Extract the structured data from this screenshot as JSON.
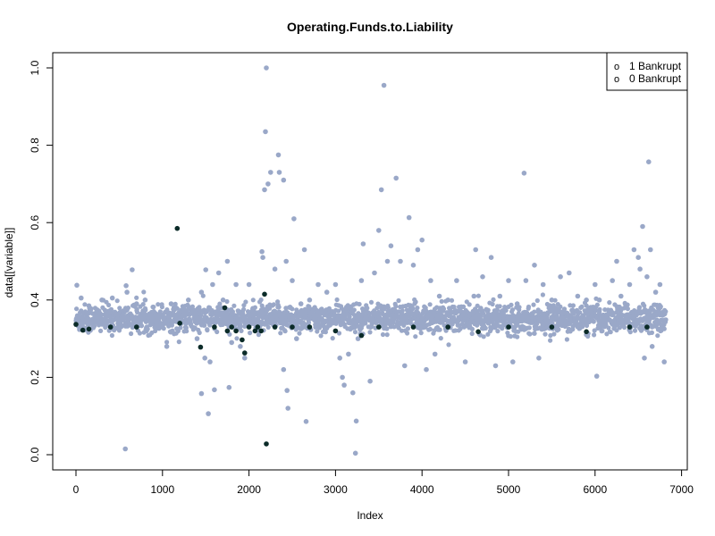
{
  "chart_data": {
    "type": "scatter",
    "title": "Operating.Funds.to.Liability",
    "xlabel": "Index",
    "ylabel": "data[[variable]]",
    "xlim": [
      0,
      7000
    ],
    "ylim": [
      0,
      1.0
    ],
    "x_ticks": [
      0,
      1000,
      2000,
      3000,
      4000,
      5000,
      6000,
      7000
    ],
    "y_ticks": [
      0.0,
      0.2,
      0.4,
      0.6,
      0.8,
      1.0
    ],
    "x_tick_labels": [
      "0",
      "1000",
      "2000",
      "3000",
      "4000",
      "5000",
      "6000",
      "7000"
    ],
    "y_tick_labels": [
      "0.0",
      "0.2",
      "0.4",
      "0.6",
      "0.8",
      "1.0"
    ],
    "legend": {
      "position": "top-right",
      "entries": [
        {
          "marker": "o",
          "label": "1 Bankrupt"
        },
        {
          "marker": "o",
          "label": "0 Bankrupt"
        }
      ]
    },
    "band": {
      "x_start": 0,
      "x_end": 6819,
      "center": 0.352,
      "spread": 0.018
    },
    "series": [
      {
        "name": "0 Bankrupt",
        "color": "#9aa8c8",
        "points": [
          [
            10,
            0.438
          ],
          [
            60,
            0.405
          ],
          [
            150,
            0.385
          ],
          [
            300,
            0.4
          ],
          [
            420,
            0.405
          ],
          [
            570,
            0.015
          ],
          [
            580,
            0.437
          ],
          [
            590,
            0.42
          ],
          [
            650,
            0.478
          ],
          [
            700,
            0.39
          ],
          [
            800,
            0.4
          ],
          [
            900,
            0.37
          ],
          [
            1000,
            0.36
          ],
          [
            1050,
            0.28
          ],
          [
            1100,
            0.39
          ],
          [
            1300,
            0.4
          ],
          [
            1400,
            0.3
          ],
          [
            1450,
            0.158
          ],
          [
            1450,
            0.42
          ],
          [
            1490,
            0.25
          ],
          [
            1500,
            0.478
          ],
          [
            1530,
            0.106
          ],
          [
            1550,
            0.24
          ],
          [
            1580,
            0.44
          ],
          [
            1600,
            0.168
          ],
          [
            1650,
            0.47
          ],
          [
            1700,
            0.4
          ],
          [
            1750,
            0.5
          ],
          [
            1770,
            0.174
          ],
          [
            1800,
            0.29
          ],
          [
            1850,
            0.44
          ],
          [
            1900,
            0.28
          ],
          [
            1950,
            0.25
          ],
          [
            2000,
            0.44
          ],
          [
            2100,
            0.34
          ],
          [
            2150,
            0.525
          ],
          [
            2160,
            0.51
          ],
          [
            2180,
            0.685
          ],
          [
            2190,
            0.835
          ],
          [
            2200,
            1.0
          ],
          [
            2220,
            0.7
          ],
          [
            2250,
            0.73
          ],
          [
            2300,
            0.48
          ],
          [
            2340,
            0.775
          ],
          [
            2350,
            0.73
          ],
          [
            2400,
            0.71
          ],
          [
            2400,
            0.22
          ],
          [
            2430,
            0.5
          ],
          [
            2440,
            0.166
          ],
          [
            2450,
            0.12
          ],
          [
            2500,
            0.45
          ],
          [
            2520,
            0.61
          ],
          [
            2550,
            0.3
          ],
          [
            2600,
            0.39
          ],
          [
            2640,
            0.53
          ],
          [
            2660,
            0.086
          ],
          [
            2700,
            0.4
          ],
          [
            2800,
            0.44
          ],
          [
            2900,
            0.42
          ],
          [
            3000,
            0.44
          ],
          [
            3050,
            0.25
          ],
          [
            3080,
            0.2
          ],
          [
            3100,
            0.18
          ],
          [
            3150,
            0.26
          ],
          [
            3200,
            0.16
          ],
          [
            3230,
            0.004
          ],
          [
            3240,
            0.087
          ],
          [
            3260,
            0.3
          ],
          [
            3300,
            0.45
          ],
          [
            3320,
            0.545
          ],
          [
            3400,
            0.19
          ],
          [
            3450,
            0.47
          ],
          [
            3500,
            0.58
          ],
          [
            3530,
            0.685
          ],
          [
            3560,
            0.955
          ],
          [
            3600,
            0.5
          ],
          [
            3640,
            0.54
          ],
          [
            3700,
            0.715
          ],
          [
            3750,
            0.5
          ],
          [
            3800,
            0.23
          ],
          [
            3850,
            0.613
          ],
          [
            3900,
            0.49
          ],
          [
            3950,
            0.53
          ],
          [
            4000,
            0.555
          ],
          [
            4050,
            0.22
          ],
          [
            4100,
            0.45
          ],
          [
            4150,
            0.26
          ],
          [
            4200,
            0.41
          ],
          [
            4300,
            0.4
          ],
          [
            4400,
            0.45
          ],
          [
            4500,
            0.24
          ],
          [
            4600,
            0.41
          ],
          [
            4620,
            0.53
          ],
          [
            4700,
            0.46
          ],
          [
            4800,
            0.51
          ],
          [
            4850,
            0.23
          ],
          [
            4900,
            0.41
          ],
          [
            5000,
            0.45
          ],
          [
            5050,
            0.24
          ],
          [
            5100,
            0.39
          ],
          [
            5180,
            0.728
          ],
          [
            5200,
            0.45
          ],
          [
            5300,
            0.49
          ],
          [
            5350,
            0.25
          ],
          [
            5400,
            0.44
          ],
          [
            5500,
            0.4
          ],
          [
            5600,
            0.46
          ],
          [
            5700,
            0.47
          ],
          [
            5800,
            0.41
          ],
          [
            5900,
            0.4
          ],
          [
            6000,
            0.44
          ],
          [
            6020,
            0.203
          ],
          [
            6050,
            0.4
          ],
          [
            6200,
            0.45
          ],
          [
            6250,
            0.5
          ],
          [
            6300,
            0.41
          ],
          [
            6400,
            0.44
          ],
          [
            6450,
            0.53
          ],
          [
            6500,
            0.51
          ],
          [
            6520,
            0.48
          ],
          [
            6550,
            0.59
          ],
          [
            6570,
            0.25
          ],
          [
            6600,
            0.46
          ],
          [
            6620,
            0.757
          ],
          [
            6640,
            0.53
          ],
          [
            6660,
            0.28
          ],
          [
            6700,
            0.42
          ],
          [
            6750,
            0.44
          ],
          [
            6800,
            0.24
          ]
        ]
      },
      {
        "name": "1 Bankrupt",
        "color": "#0b2b28",
        "points": [
          [
            0,
            0.337
          ],
          [
            80,
            0.322
          ],
          [
            150,
            0.325
          ],
          [
            400,
            0.33
          ],
          [
            700,
            0.33
          ],
          [
            1170,
            0.585
          ],
          [
            1200,
            0.34
          ],
          [
            1440,
            0.278
          ],
          [
            1600,
            0.33
          ],
          [
            1720,
            0.38
          ],
          [
            1750,
            0.32
          ],
          [
            1800,
            0.33
          ],
          [
            1850,
            0.32
          ],
          [
            1920,
            0.297
          ],
          [
            1950,
            0.263
          ],
          [
            2000,
            0.33
          ],
          [
            2070,
            0.32
          ],
          [
            2100,
            0.33
          ],
          [
            2140,
            0.32
          ],
          [
            2180,
            0.415
          ],
          [
            2200,
            0.028
          ],
          [
            2300,
            0.33
          ],
          [
            2500,
            0.33
          ],
          [
            2700,
            0.33
          ],
          [
            3000,
            0.32
          ],
          [
            3300,
            0.308
          ],
          [
            3500,
            0.33
          ],
          [
            3900,
            0.33
          ],
          [
            4300,
            0.33
          ],
          [
            4650,
            0.318
          ],
          [
            5000,
            0.33
          ],
          [
            5500,
            0.33
          ],
          [
            5900,
            0.318
          ],
          [
            6400,
            0.33
          ],
          [
            6600,
            0.33
          ]
        ]
      }
    ]
  }
}
